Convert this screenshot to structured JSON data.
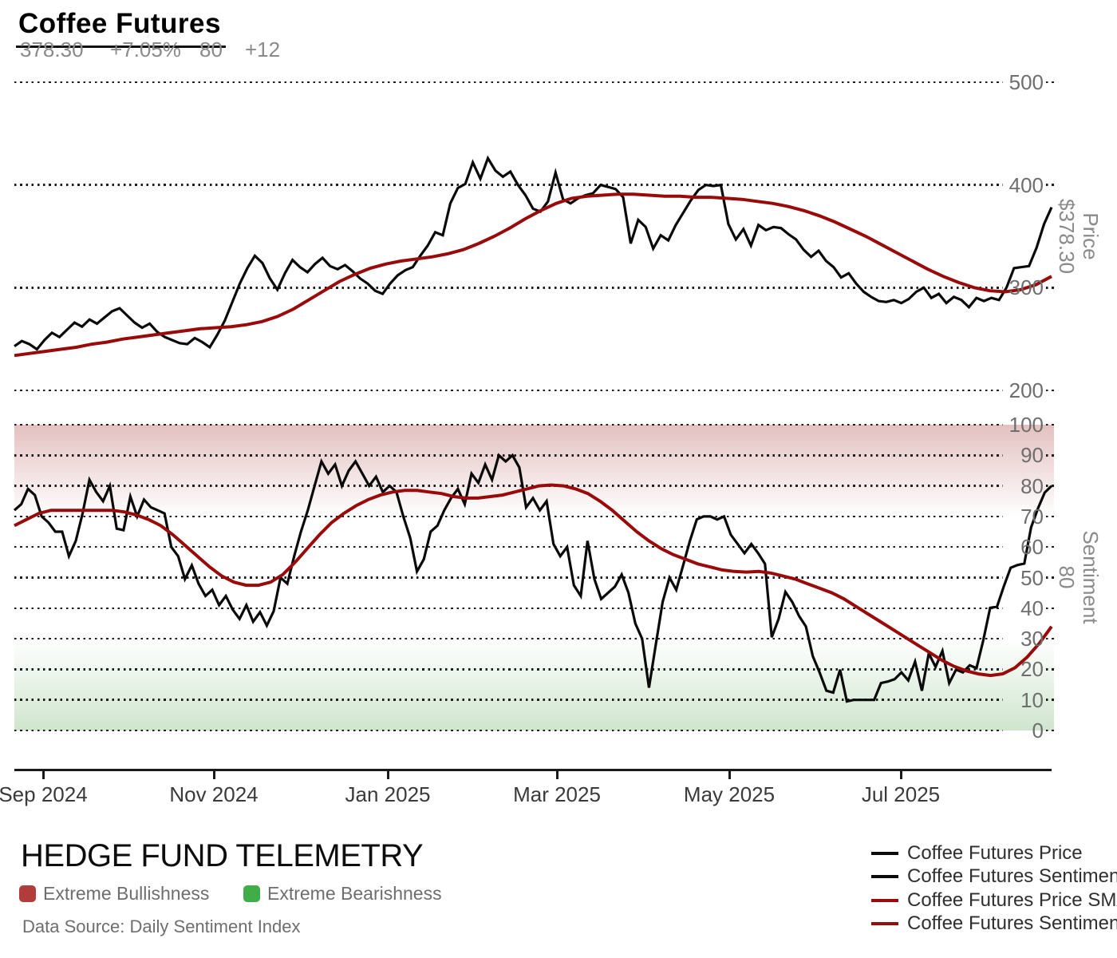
{
  "header": {
    "title": "Coffee Futures",
    "price_value": "378.30",
    "price_change_pct": "+7.05%",
    "sentiment_value": "80",
    "sentiment_change": "+12"
  },
  "footer": {
    "brand": "HEDGE FUND TELEMETRY",
    "source": "Data Source: Daily Sentiment Index",
    "flags": [
      {
        "label": "Extreme Bullishness",
        "color": "#b23b3b"
      },
      {
        "label": "Extreme Bearishness",
        "color": "#3fae49"
      }
    ]
  },
  "legend": {
    "items": [
      {
        "label": "Coffee Futures Price",
        "color": "#0a0a0a"
      },
      {
        "label": "Coffee Futures Sentiment",
        "color": "#0a0a0a"
      },
      {
        "label": "Coffee Futures Price SMA",
        "color": "#990b0b"
      },
      {
        "label": "Coffee Futures Sentiment SMA",
        "color": "#990b0b"
      }
    ]
  },
  "chart_data": {
    "type": "line",
    "title": "Coffee Futures",
    "grid": "dotted",
    "x_tick_labels": [
      "Sep 2024",
      "Nov 2024",
      "Jan 2025",
      "Mar 2025",
      "May 2025",
      "Jul 2025"
    ],
    "panels": [
      {
        "name": "price",
        "ylabel": "Price",
        "current_value_label": "$378.30",
        "ylim": [
          200,
          500
        ],
        "yticks": [
          200,
          300,
          400,
          500
        ],
        "bands": [],
        "series": [
          {
            "name": "Coffee Futures Price",
            "color": "#0a0a0a",
            "width": 3.2,
            "values": [
              243,
              248,
              245,
              240,
              249,
              256,
              252,
              259,
              266,
              262,
              269,
              265,
              271,
              277,
              280,
              273,
              266,
              261,
              265,
              257,
              252,
              249,
              246,
              245,
              251,
              247,
              242,
              254,
              268,
              286,
              304,
              319,
              331,
              324,
              309,
              298,
              314,
              327,
              320,
              315,
              323,
              329,
              321,
              318,
              322,
              316,
              309,
              304,
              297,
              294,
              304,
              312,
              317,
              320,
              331,
              341,
              354,
              351,
              382,
              397,
              401,
              422,
              406,
              426,
              414,
              408,
              413,
              400,
              390,
              377,
              374,
              384,
              412,
              386,
              382,
              387,
              390,
              392,
              400,
              398,
              396,
              388,
              343,
              366,
              359,
              338,
              351,
              346,
              361,
              373,
              385,
              395,
              400,
              399,
              400,
              362,
              347,
              357,
              341,
              361,
              356,
              359,
              358,
              352,
              347,
              337,
              330,
              336,
              326,
              320,
              310,
              314,
              304,
              296,
              291,
              287,
              286,
              288,
              285,
              289,
              296,
              300,
              290,
              294,
              285,
              291,
              288,
              281,
              290,
              287,
              290,
              288,
              300,
              319,
              320,
              321,
              339,
              362,
              378.3
            ]
          },
          {
            "name": "Coffee Futures Price SMA",
            "color": "#990b0b",
            "width": 4,
            "values": [
              234,
              236,
              238,
              240,
              242,
              245,
              247,
              250,
              252,
              254,
              256,
              258,
              260,
              261,
              262,
              264,
              267,
              272,
              279,
              288,
              297,
              306,
              313,
              319,
              323,
              326,
              328,
              330,
              333,
              337,
              343,
              350,
              358,
              367,
              375,
              382,
              387,
              389,
              390,
              391,
              391,
              390,
              389,
              389,
              388,
              388,
              387,
              386,
              384,
              382,
              379,
              375,
              370,
              364,
              357,
              350,
              342,
              334,
              326,
              318,
              311,
              305,
              300,
              297,
              296,
              298,
              303,
              311
            ]
          }
        ]
      },
      {
        "name": "sentiment",
        "ylabel": "Sentiment",
        "current_value_label": "80",
        "ylim": [
          0,
          100
        ],
        "yticks": [
          0,
          10,
          20,
          30,
          40,
          50,
          60,
          70,
          80,
          90,
          100
        ],
        "bands": [
          {
            "label": "Extreme Bullishness",
            "range": [
              70,
              100
            ],
            "color": "#aa3c3c",
            "fade": "top"
          },
          {
            "label": "Extreme Bearishness",
            "range": [
              0,
              30
            ],
            "color": "#5faa5a",
            "fade": "bottom"
          }
        ],
        "series": [
          {
            "name": "Coffee Futures Sentiment",
            "color": "#0a0a0a",
            "width": 3.2,
            "values": [
              72,
              74,
              79,
              77,
              70,
              68,
              65,
              65,
              57,
              62,
              71,
              82,
              78,
              75,
              80,
              66,
              65.5,
              76.5,
              70,
              75.5,
              73,
              72,
              71,
              60,
              57,
              49.5,
              54,
              48,
              44,
              46,
              41,
              44,
              39.5,
              36.5,
              41,
              35.6,
              38.7,
              34.3,
              39,
              50,
              48,
              57,
              65,
              72,
              80,
              88,
              84,
              87,
              80,
              85,
              88,
              84,
              80,
              83,
              78,
              80,
              78,
              70,
              63,
              52,
              56,
              65,
              67,
              72,
              76,
              79,
              74,
              84,
              81,
              87,
              82,
              90,
              88,
              90,
              86,
              73,
              76,
              72,
              75,
              61,
              57,
              60,
              47.5,
              44,
              62,
              49.5,
              43,
              45,
              47,
              51,
              45,
              35,
              30,
              14,
              28,
              42,
              50,
              46,
              54,
              62,
              69,
              70,
              70,
              69,
              70,
              64,
              61,
              58,
              61,
              58,
              54.5,
              30.5,
              36.5,
              45.3,
              42,
              37.4,
              34,
              24.3,
              19,
              13,
              12.4,
              19.9,
              9.5,
              10,
              10,
              10,
              10,
              15.5,
              16,
              16.8,
              19,
              16.4,
              22.5,
              13,
              25.2,
              20.8,
              26,
              15.5,
              19.9,
              19,
              21.3,
              20.4,
              29.6,
              40.1,
              40.5,
              47.1,
              53.2,
              54.1,
              54.6,
              66.4,
              72.6,
              77.8,
              80
            ]
          },
          {
            "name": "Coffee Futures Sentiment SMA",
            "color": "#990b0b",
            "width": 4,
            "values": [
              67,
              69,
              71,
              72,
              72,
              72,
              72,
              72,
              72,
              71.5,
              70.5,
              69,
              67,
              64,
              60.5,
              57,
              53.5,
              50.5,
              48.5,
              47.5,
              47.5,
              48.5,
              51,
              55,
              59.5,
              64,
              68,
              71,
              73.5,
              75.5,
              77,
              78,
              78.5,
              78.5,
              78,
              77.5,
              76.5,
              76,
              76,
              76.5,
              77,
              78,
              79,
              80,
              80.3,
              80,
              79,
              77.5,
              75,
              72,
              68.5,
              65,
              62,
              59.5,
              57.5,
              56,
              54.5,
              53.5,
              52.5,
              52,
              51.8,
              52,
              51.5,
              50.5,
              49.5,
              48,
              46.5,
              45,
              43,
              40.5,
              38,
              35.5,
              33,
              30.5,
              28,
              25.5,
              23,
              21,
              19.5,
              18.5,
              18,
              18.5,
              20.5,
              24,
              28.5,
              34
            ]
          }
        ]
      }
    ]
  }
}
